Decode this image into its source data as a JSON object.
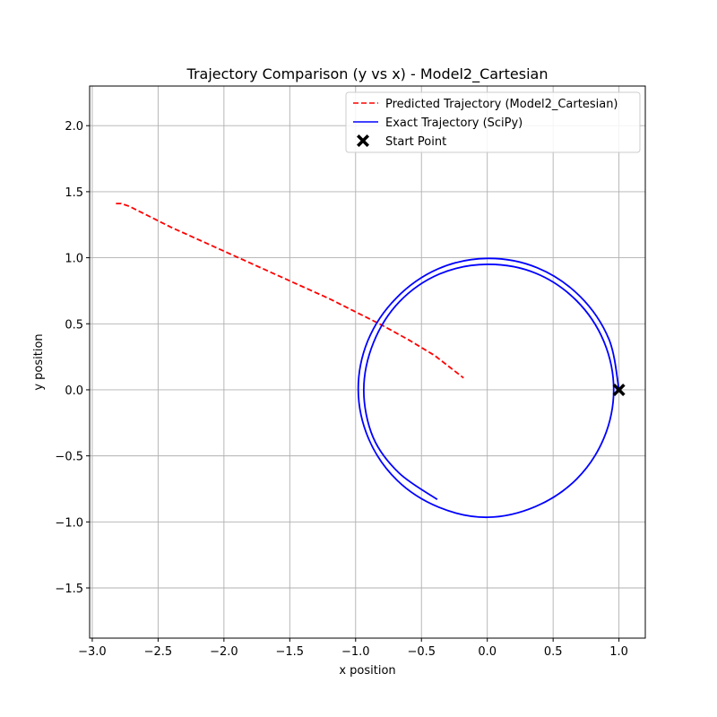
{
  "chart_data": {
    "type": "line",
    "title": "Trajectory Comparison (y vs x) - Model2_Cartesian",
    "xlabel": "x position",
    "ylabel": "y position",
    "xlim": [
      -3.02,
      1.2
    ],
    "ylim": [
      -1.88,
      2.3
    ],
    "xticks": [
      -3.0,
      -2.5,
      -2.0,
      -1.5,
      -1.0,
      -0.5,
      0.0,
      0.5,
      1.0
    ],
    "xtick_labels": [
      "−3.0",
      "−2.5",
      "−2.0",
      "−1.5",
      "−1.0",
      "−0.5",
      "0.0",
      "0.5",
      "1.0"
    ],
    "yticks": [
      -1.5,
      -1.0,
      -0.5,
      0.0,
      0.5,
      1.0,
      1.5,
      2.0
    ],
    "ytick_labels": [
      "−1.5",
      "−1.0",
      "−0.5",
      "0.0",
      "0.5",
      "1.0",
      "1.5",
      "2.0"
    ],
    "grid": true,
    "legend_position": "top-right",
    "series": [
      {
        "name": "Predicted Trajectory (Model2_Cartesian)",
        "color": "#ff0000",
        "style": "dashed",
        "x": [
          -2.82,
          -2.78,
          -2.72,
          -2.6,
          -2.4,
          -2.2,
          -2.0,
          -1.8,
          -1.6,
          -1.4,
          -1.2,
          -1.0,
          -0.8,
          -0.6,
          -0.4,
          -0.18
        ],
        "y": [
          1.41,
          1.41,
          1.39,
          1.33,
          1.23,
          1.14,
          1.05,
          0.96,
          0.87,
          0.78,
          0.69,
          0.59,
          0.49,
          0.38,
          0.26,
          0.09
        ]
      },
      {
        "name": "Exact Trajectory (SciPy)",
        "color": "#0000ff",
        "style": "solid",
        "x": [
          1.0,
          0.924,
          0.705,
          0.38,
          0.0,
          -0.375,
          -0.693,
          -0.906,
          -0.98,
          -0.9,
          -0.685,
          -0.368,
          0.0,
          0.366,
          0.677,
          0.885,
          0.96,
          0.885,
          0.676,
          0.365,
          0.0,
          -0.363,
          -0.667,
          -0.864,
          -0.938,
          -0.867,
          -0.67,
          -0.38
        ],
        "y": [
          0.0,
          0.383,
          0.707,
          0.924,
          0.995,
          0.915,
          0.693,
          0.375,
          0.0,
          -0.373,
          -0.685,
          -0.889,
          -0.965,
          -0.884,
          -0.677,
          -0.367,
          0.0,
          0.367,
          0.677,
          0.884,
          0.95,
          0.877,
          0.667,
          0.358,
          0.0,
          -0.36,
          -0.63,
          -0.83
        ]
      },
      {
        "name": "Start Point",
        "color": "#000000",
        "style": "marker-x",
        "x": [
          1.0
        ],
        "y": [
          0.0
        ]
      }
    ]
  }
}
